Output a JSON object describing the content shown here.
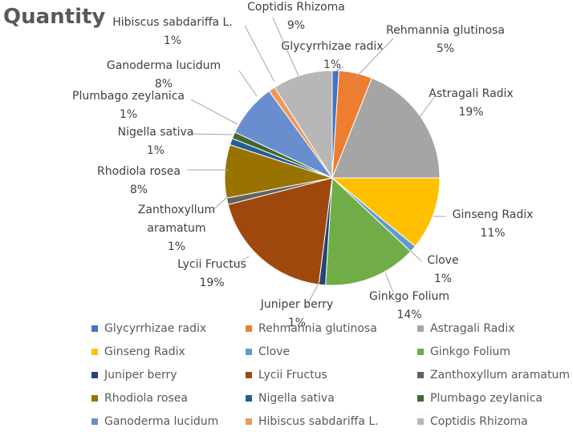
{
  "chart_data": {
    "type": "pie",
    "title": "Quantity",
    "slices": [
      {
        "label": "Glycyrrhizae radix",
        "value": 1,
        "pct_label": "1%",
        "color": "#4472C4"
      },
      {
        "label": "Rehmannia glutinosa",
        "value": 5,
        "pct_label": "5%",
        "color": "#ED7D31"
      },
      {
        "label": "Astragali Radix",
        "value": 19,
        "pct_label": "19%",
        "color": "#A5A5A5"
      },
      {
        "label": "Ginseng Radix",
        "value": 11,
        "pct_label": "11%",
        "color": "#FFC000"
      },
      {
        "label": "Clove",
        "value": 1,
        "pct_label": "1%",
        "color": "#5B9BD5"
      },
      {
        "label": "Ginkgo Folium",
        "value": 14,
        "pct_label": "14%",
        "color": "#70AD47"
      },
      {
        "label": "Juniper berry",
        "value": 1,
        "pct_label": "1%",
        "color": "#264478"
      },
      {
        "label": "Lycii Fructus",
        "value": 19,
        "pct_label": "19%",
        "color": "#9E480E"
      },
      {
        "label": "Zanthoxyllum aramatum",
        "value": 1,
        "pct_label": "1%",
        "color": "#636363"
      },
      {
        "label": "Rhodiola rosea",
        "value": 8,
        "pct_label": "8%",
        "color": "#997300"
      },
      {
        "label": "Nigella sativa",
        "value": 1,
        "pct_label": "1%",
        "color": "#255E91"
      },
      {
        "label": "Plumbago zeylanica",
        "value": 1,
        "pct_label": "1%",
        "color": "#43682B"
      },
      {
        "label": "Ganoderma lucidum",
        "value": 8,
        "pct_label": "8%",
        "color": "#698ED0"
      },
      {
        "label": "Hibiscus sabdariffa L.",
        "value": 1,
        "pct_label": "1%",
        "color": "#F1975A"
      },
      {
        "label": "Coptidis Rhizoma",
        "value": 9,
        "pct_label": "9%",
        "color": "#B7B7B7"
      }
    ],
    "data_labels": [
      {
        "name": "Glycyrrhizae radix",
        "pct": "1%"
      },
      {
        "name": "Rehmannia glutinosa",
        "pct": "5%"
      },
      {
        "name": "Astragali Radix",
        "pct": "19%"
      },
      {
        "name": "Ginseng Radix",
        "pct": "11%"
      },
      {
        "name": "Clove",
        "pct": "1%"
      },
      {
        "name": "Ginkgo Folium",
        "pct": "14%"
      },
      {
        "name": "Juniper berry",
        "pct": "1%"
      },
      {
        "name": "Lycii Fructus",
        "pct": "19%"
      },
      {
        "name": "Zanthoxyllum",
        "name2": "aramatum",
        "pct": "1%"
      },
      {
        "name": "Rhodiola rosea",
        "pct": "8%"
      },
      {
        "name": "Nigella sativa",
        "pct": "1%"
      },
      {
        "name": "Plumbago zeylanica",
        "pct": "1%"
      },
      {
        "name": "Ganoderma lucidum",
        "pct": "8%"
      },
      {
        "name": "Hibiscus sabdariffa L.",
        "pct": "1%"
      },
      {
        "name": "Coptidis Rhizoma",
        "pct": "9%"
      }
    ],
    "legend_position": "bottom",
    "legend_columns": 3
  }
}
